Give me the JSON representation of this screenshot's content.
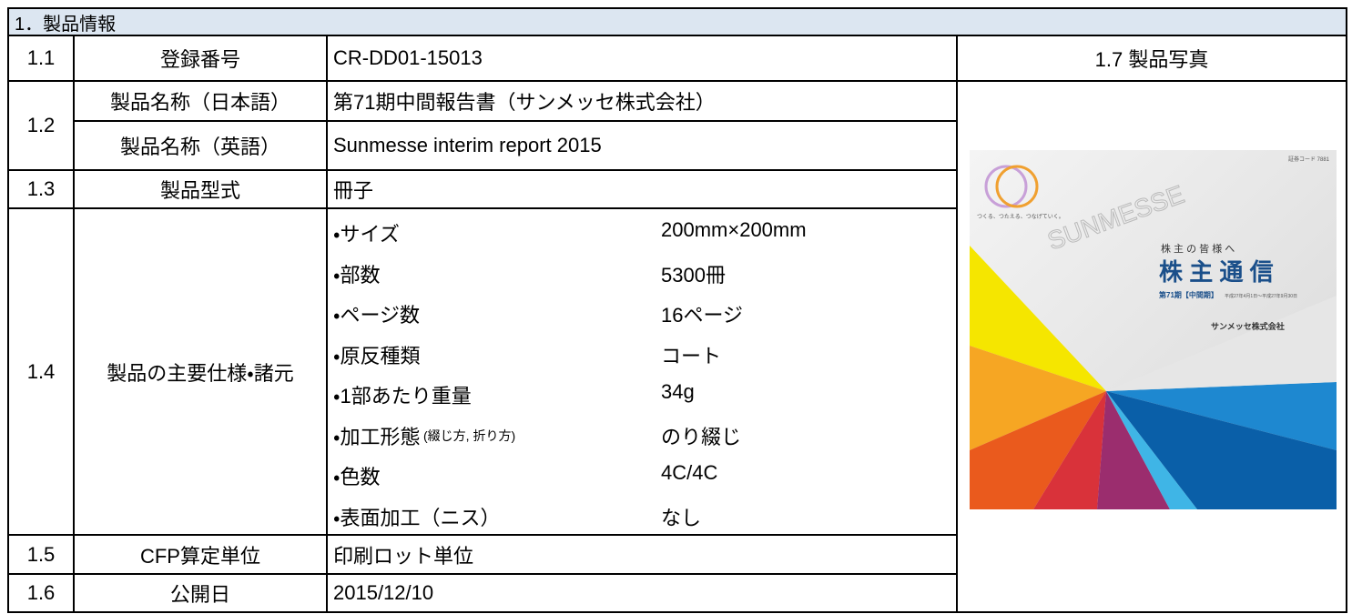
{
  "section_title": "1．製品情報",
  "photo_header": "1.7 製品写真",
  "rows": [
    {
      "number": "1.1",
      "label": "登録番号",
      "value": "CR-DD01-15013"
    },
    {
      "number": "1.2",
      "sub": [
        {
          "label": "製品名称（日本語）",
          "value": "第71期中間報告書（サンメッセ株式会社）"
        },
        {
          "label": "製品名称（英語）",
          "value": "Sunmesse interim report 2015"
        }
      ]
    },
    {
      "number": "1.3",
      "label": "製品型式",
      "value": "冊子"
    },
    {
      "number": "1.4",
      "label": "製品の主要仕様・諸元",
      "specs": [
        {
          "name": "・サイズ",
          "value": "200mm×200mm"
        },
        {
          "name": "・部数",
          "value": "5300冊"
        },
        {
          "name": "・ページ数",
          "value": "16ページ"
        },
        {
          "name": "・原反種類",
          "value": "コート"
        },
        {
          "name": "・1部あたり重量",
          "value": "34g"
        },
        {
          "name": "・加工形態",
          "note": "(綴じ方, 折り方)",
          "value": "のり綴じ"
        },
        {
          "name": "・色数",
          "value": "4C/4C"
        },
        {
          "name": "・表面加工（ニス）",
          "value": "なし"
        }
      ]
    },
    {
      "number": "1.5",
      "label": "CFP算定単位",
      "value": "印刷ロット単位"
    },
    {
      "number": "1.6",
      "label": "公開日",
      "value": "2015/12/10"
    }
  ],
  "cover": {
    "code": "証券コード 7881",
    "slogan": "つくる、つたえる、つなげていく。",
    "brand": "SUNMESSE",
    "greeting": "株 主 の 皆 様 へ",
    "title": "株 主 通 信",
    "period": "第71期【中間期】",
    "dates": "平成27年4月1日～平成27年9月30日",
    "company": "サンメッセ株式会社"
  }
}
